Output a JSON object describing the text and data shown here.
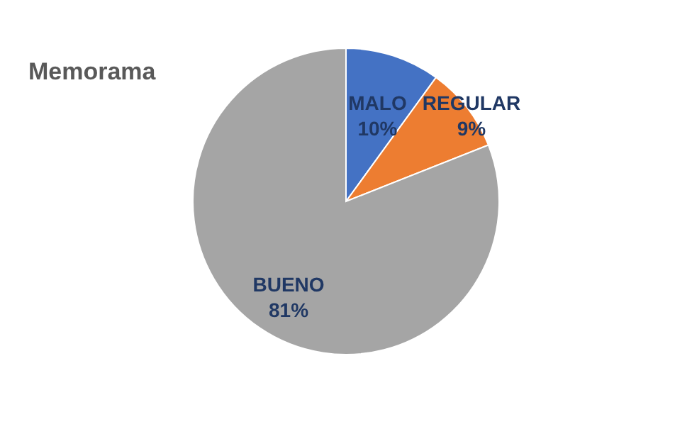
{
  "chart_data": {
    "type": "pie",
    "title": "Memorama",
    "categories": [
      "MALO",
      "REGULAR",
      "BUENO"
    ],
    "values": [
      10,
      9,
      81
    ],
    "colors": [
      "#4472c4",
      "#ed7d31",
      "#a5a5a5"
    ],
    "value_labels": [
      "10%",
      "9%",
      "81%"
    ],
    "legend": false
  }
}
